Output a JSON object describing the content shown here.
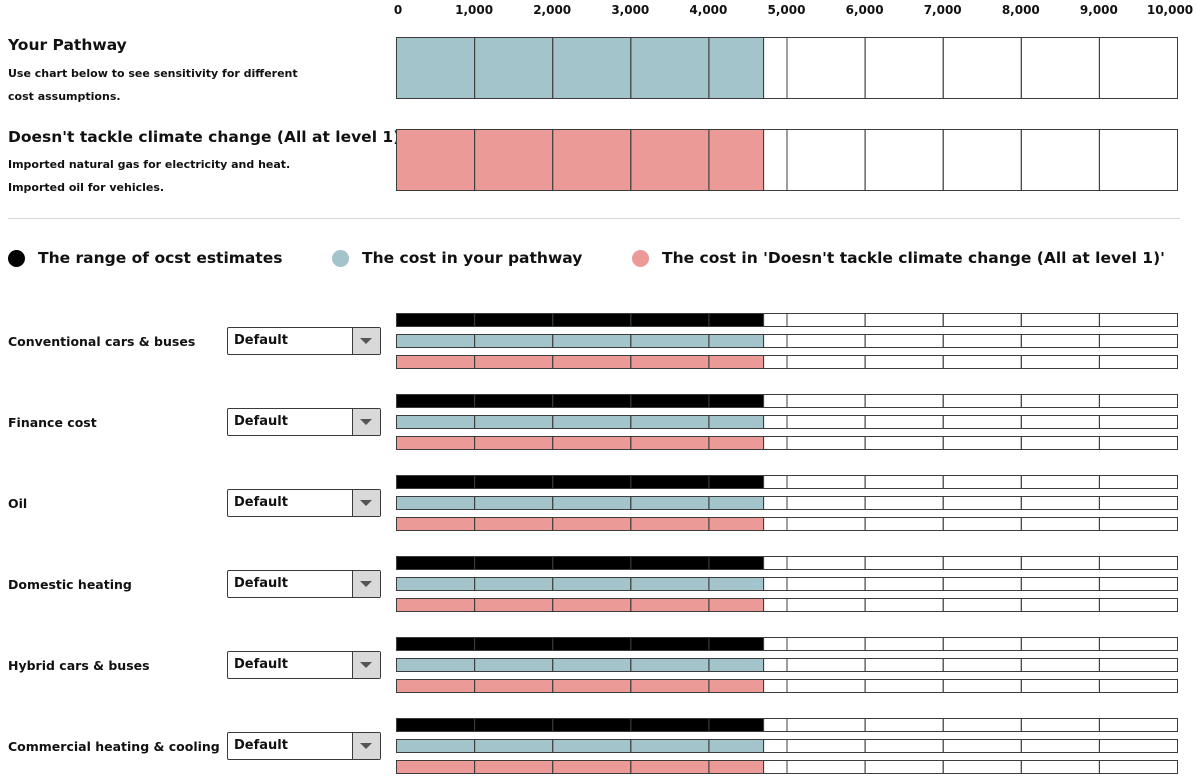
{
  "axis": {
    "ticks": [
      "0",
      "1,000",
      "2,000",
      "3,000",
      "4,000",
      "5,000",
      "6,000",
      "7,000",
      "8,000",
      "9,000",
      "10,000"
    ]
  },
  "pathway": {
    "title": "Your Pathway",
    "desc_line1": "Use chart below to see sensitivity for different",
    "desc_line2": "cost assumptions."
  },
  "baseline": {
    "title": "Doesn't tackle climate change (All at level 1)",
    "desc_line1": "Imported natural gas for electricity and heat.",
    "desc_line2": "Imported oil for vehicles."
  },
  "legend": {
    "range_label": "The range of ocst estimates",
    "pathway_label": "The cost in your pathway",
    "baseline_label": "The cost in 'Doesn't tackle climate change (All at level 1)'"
  },
  "colors": {
    "range": "#000000",
    "pathway": "#a2c4ca",
    "baseline": "#ec9a98",
    "cell_border": "#3c3c3c"
  },
  "rows": [
    {
      "label": "Conventional cars & buses",
      "option": "Default"
    },
    {
      "label": "Finance cost",
      "option": "Default"
    },
    {
      "label": "Oil",
      "option": "Default"
    },
    {
      "label": "Domestic heating",
      "option": "Default"
    },
    {
      "label": "Hybrid cars & buses",
      "option": "Default"
    },
    {
      "label": "Commercial heating & cooling",
      "option": "Default"
    }
  ],
  "chart_data": {
    "type": "bar",
    "xlim": [
      0,
      10000
    ],
    "x_ticks": [
      0,
      1000,
      2000,
      3000,
      4000,
      5000,
      6000,
      7000,
      8000,
      9000,
      10000
    ],
    "summary_bars": {
      "your_pathway": 4700,
      "doesnt_tackle_climate_change": 4700
    },
    "categories": [
      "Conventional cars & buses",
      "Finance cost",
      "Oil",
      "Domestic heating",
      "Hybrid cars & buses",
      "Commercial heating & cooling"
    ],
    "series": [
      {
        "name": "The range of ocst estimates",
        "values": [
          4700,
          4700,
          4700,
          4700,
          4700,
          4700
        ]
      },
      {
        "name": "The cost in your pathway",
        "values": [
          4700,
          4700,
          4700,
          4700,
          4700,
          4700
        ]
      },
      {
        "name": "The cost in 'Doesn't tackle climate change (All at level 1)'",
        "values": [
          4700,
          4700,
          4700,
          4700,
          4700,
          4700
        ]
      }
    ],
    "grid": true
  }
}
